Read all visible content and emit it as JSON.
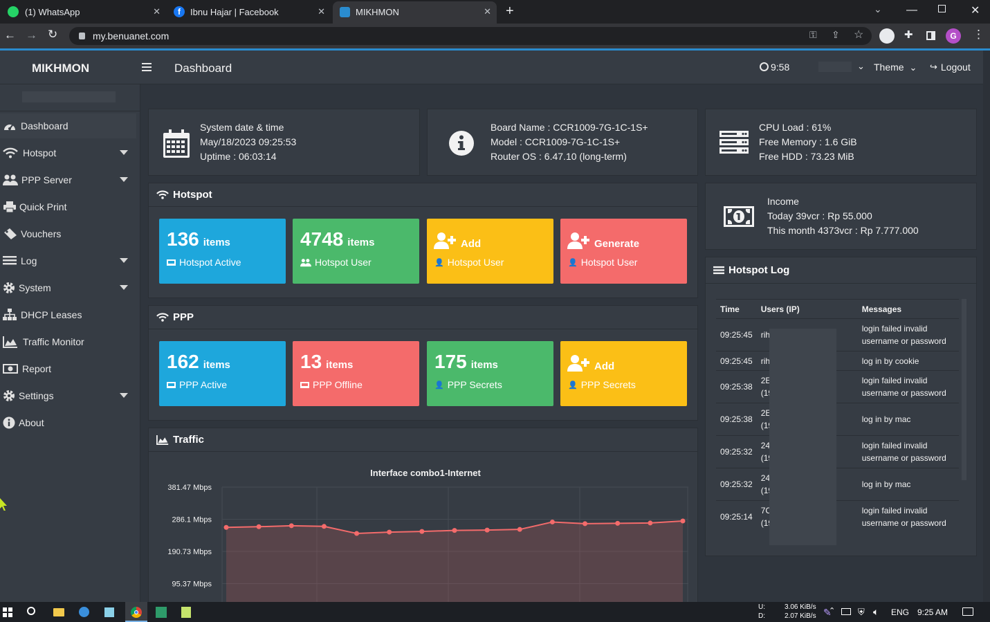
{
  "browser": {
    "tabs": [
      {
        "label": "(1) WhatsApp"
      },
      {
        "label": "Ibnu Hajar | Facebook"
      },
      {
        "label": "MIKHMON"
      }
    ],
    "url": "my.benuanet.com",
    "profile_initial": "G"
  },
  "app": {
    "brand": "MIKHMON",
    "page_title": "Dashboard",
    "clock": "9:58",
    "theme_label": "Theme",
    "logout_label": "Logout"
  },
  "sidebar": {
    "items": [
      {
        "label": "Dashboard",
        "icon": "dashboard-icon"
      },
      {
        "label": "Hotspot",
        "icon": "wifi-icon"
      },
      {
        "label": "PPP Server",
        "icon": "users-icon"
      },
      {
        "label": "Quick Print",
        "icon": "print-icon"
      },
      {
        "label": "Vouchers",
        "icon": "ticket-icon"
      },
      {
        "label": "Log",
        "icon": "list-icon"
      },
      {
        "label": "System",
        "icon": "gear-icon"
      },
      {
        "label": "DHCP Leases",
        "icon": "sitemap-icon"
      },
      {
        "label": "Traffic Monitor",
        "icon": "area-chart-icon"
      },
      {
        "label": "Report",
        "icon": "money-icon"
      },
      {
        "label": "Settings",
        "icon": "gear-icon"
      },
      {
        "label": "About",
        "icon": "info-icon"
      }
    ]
  },
  "sysinfo": {
    "datetime_title": "System date & time",
    "datetime": "May/18/2023 09:25:53",
    "uptime": "Uptime : 06:03:14",
    "board": "Board Name : CCR1009-7G-1C-1S+",
    "model": "Model : CCR1009-7G-1C-1S+",
    "routeros": "Router OS : 6.47.10 (long-term)",
    "cpu": "CPU Load : 61%",
    "memory": "Free Memory : 1.6 GiB",
    "hdd": "Free HDD : 73.23 MiB"
  },
  "income": {
    "title": "Income",
    "today": "Today 39vcr : Rp 55.000",
    "month": "This month 4373vcr : Rp 7.777.000"
  },
  "hotspot": {
    "title": "Hotspot",
    "tiles": [
      {
        "value": "136",
        "unit": "items",
        "label": "Hotspot Active",
        "color": "#1ea7dc"
      },
      {
        "value": "4748",
        "unit": "items",
        "label": "Hotspot User",
        "color": "#4bb96b"
      },
      {
        "value": "Add",
        "unit": "",
        "label": "Hotspot User",
        "color": "#fbbf16"
      },
      {
        "value": "Generate",
        "unit": "",
        "label": "Hotspot User",
        "color": "#f46b6b"
      }
    ]
  },
  "ppp": {
    "title": "PPP",
    "tiles": [
      {
        "value": "162",
        "unit": "items",
        "label": "PPP Active",
        "color": "#1ea7dc"
      },
      {
        "value": "13",
        "unit": "items",
        "label": "PPP Offline",
        "color": "#f46b6b"
      },
      {
        "value": "175",
        "unit": "items",
        "label": "PPP Secrets",
        "color": "#4bb96b"
      },
      {
        "value": "Add",
        "unit": "",
        "label": "PPP Secrets",
        "color": "#fbbf16"
      }
    ]
  },
  "traffic": {
    "title": "Traffic",
    "chart_title": "Interface combo1-Internet"
  },
  "chart_data": {
    "type": "line",
    "title": "Interface combo1-Internet",
    "y_ticks": [
      "381.47 Mbps",
      "286.1 Mbps",
      "190.73 Mbps",
      "95.37 Mbps"
    ],
    "ylim": [
      0,
      381.47
    ],
    "series": [
      {
        "values": [
          262,
          264,
          267,
          265,
          244,
          248,
          250,
          253,
          254,
          256,
          278,
          273,
          274,
          275,
          281
        ]
      }
    ],
    "series_color": "#f46b6b"
  },
  "hotspot_log": {
    "title": "Hotspot Log",
    "columns": [
      "Time",
      "Users (IP)",
      "Messages"
    ],
    "rows": [
      {
        "time": "09:25:45",
        "user": "rih",
        "user2": "",
        "msg": "login failed invalid",
        "msg2": "username or password"
      },
      {
        "time": "09:25:45",
        "user": "rih",
        "user2": "",
        "msg": "log in by cookie",
        "msg2": ""
      },
      {
        "time": "09:25:38",
        "user": "2E",
        "user2": "(19",
        "msg": "login failed invalid",
        "msg2": "username or password"
      },
      {
        "time": "09:25:38",
        "user": "2E",
        "user2": "(19",
        "msg": "log in by mac",
        "msg2": ""
      },
      {
        "time": "09:25:32",
        "user": "24:",
        "user2": "(19",
        "msg": "login failed invalid",
        "msg2": "username or password"
      },
      {
        "time": "09:25:32",
        "user": "24:",
        "user2": "(19",
        "msg": "log in by mac",
        "msg2": ""
      },
      {
        "time": "09:25:14",
        "user": "7C:",
        "user2": "(19",
        "msg": "login failed invalid",
        "msg2": "username or password"
      }
    ]
  },
  "taskbar": {
    "net_up_label": "U:",
    "net_down_label": "D:",
    "net_up": "3.06 KiB/s",
    "net_down": "2.07 KiB/s",
    "lang": "ENG",
    "time": "9:25 AM"
  }
}
